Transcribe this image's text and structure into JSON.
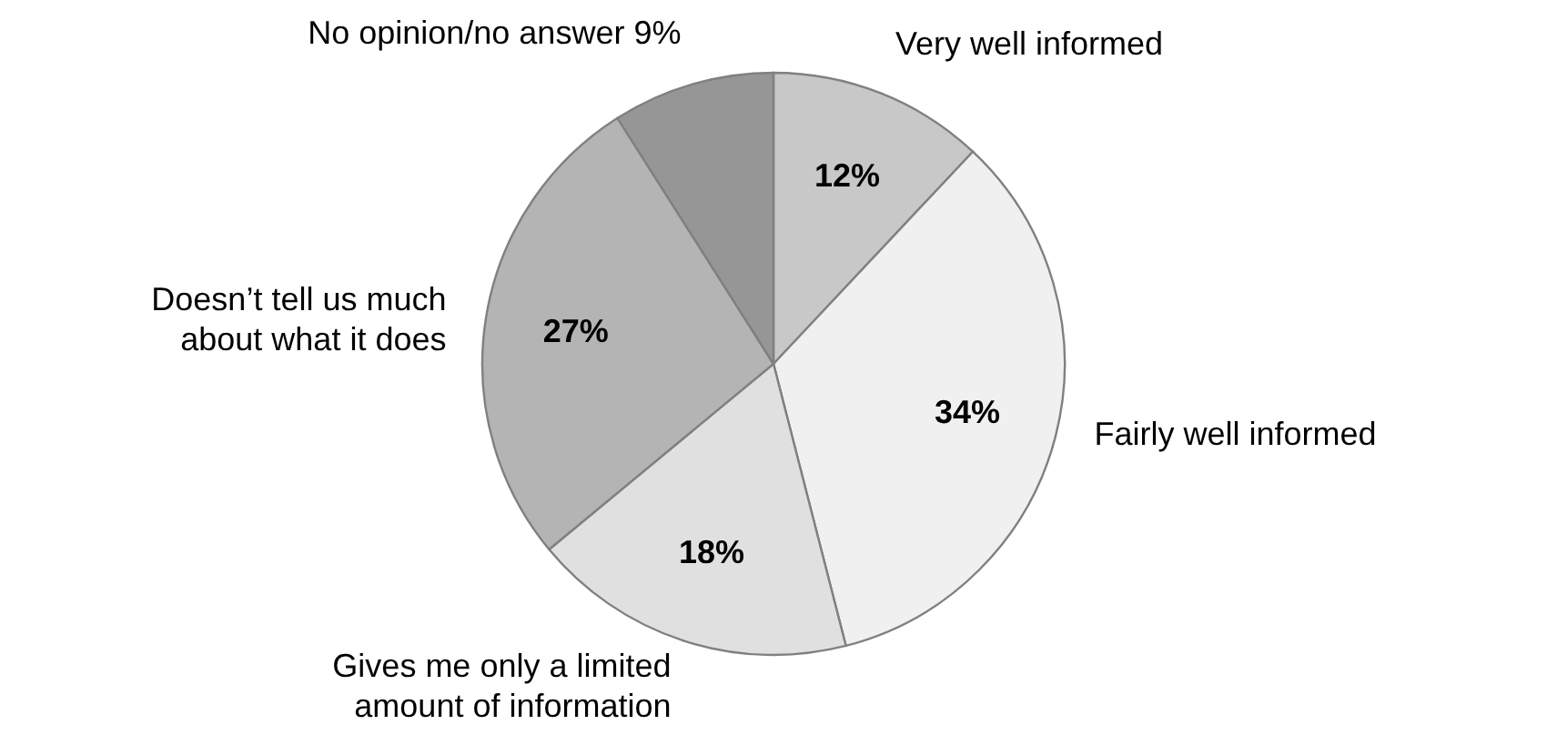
{
  "chart_data": {
    "type": "pie",
    "categories": [
      "Very well informed",
      "Fairly well informed",
      "Gives me only a limited\namount of information",
      "Doesn’t tell us much\nabout what it does",
      "No opinion/no answer 9%"
    ],
    "values": [
      12,
      34,
      18,
      27,
      9
    ],
    "colors": [
      "#c8c8c8",
      "#f0f0f0",
      "#e0e0e0",
      "#b4b4b4",
      "#969696"
    ],
    "value_labels": [
      "12%",
      "34%",
      "18%",
      "27%",
      null
    ],
    "legend": false
  }
}
